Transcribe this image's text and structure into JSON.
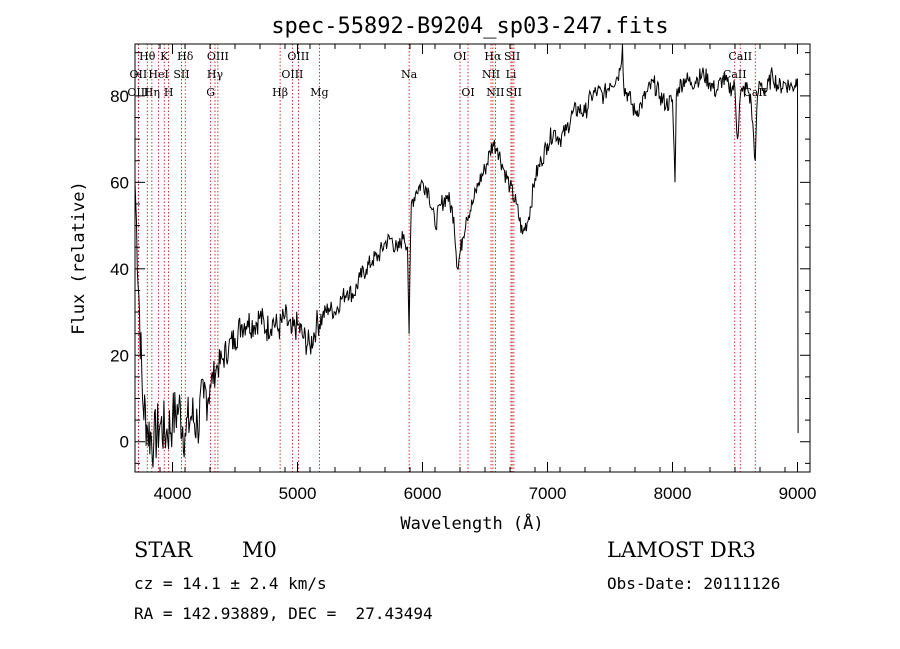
{
  "chart_data": {
    "type": "line",
    "title": "spec-55892-B9204_sp03-247.fits",
    "xlabel": "Wavelength (Å)",
    "ylabel": "Flux (relative)",
    "xlim": [
      3700,
      9100
    ],
    "ylim": [
      -7,
      92
    ],
    "xticks": [
      4000,
      5000,
      6000,
      7000,
      8000,
      9000
    ],
    "yticks": [
      0,
      20,
      40,
      60,
      80
    ],
    "series": [
      {
        "name": "flux",
        "x": [
          3700,
          3760,
          3800,
          3850,
          3900,
          3950,
          4000,
          4050,
          4100,
          4150,
          4200,
          4250,
          4300,
          4350,
          4400,
          4450,
          4500,
          4550,
          4600,
          4650,
          4700,
          4750,
          4800,
          4850,
          4900,
          4950,
          5000,
          5050,
          5100,
          5150,
          5200,
          5250,
          5300,
          5350,
          5400,
          5450,
          5500,
          5550,
          5600,
          5650,
          5700,
          5750,
          5800,
          5850,
          5880,
          5893,
          5910,
          5950,
          6000,
          6050,
          6100,
          6150,
          6200,
          6250,
          6280,
          6320,
          6350,
          6400,
          6450,
          6500,
          6540,
          6563,
          6600,
          6650,
          6700,
          6750,
          6800,
          6850,
          6900,
          6950,
          7000,
          7050,
          7100,
          7150,
          7200,
          7250,
          7300,
          7350,
          7400,
          7450,
          7500,
          7550,
          7580,
          7600,
          7610,
          7650,
          7700,
          7750,
          7800,
          7850,
          7900,
          7950,
          8000,
          8020,
          8030,
          8050,
          8100,
          8150,
          8200,
          8250,
          8300,
          8350,
          8400,
          8450,
          8498,
          8520,
          8542,
          8560,
          8600,
          8630,
          8662,
          8680,
          8700,
          8750,
          8800,
          8850,
          8900,
          8960,
          9000,
          9005
        ],
        "values": [
          60,
          10,
          3,
          0,
          4,
          2,
          5,
          8,
          2,
          6,
          4,
          10,
          13,
          17,
          19,
          22,
          24,
          27,
          28,
          27,
          29,
          26,
          28,
          26,
          29,
          25,
          27,
          24,
          22,
          27,
          29,
          31,
          30,
          33,
          35,
          34,
          38,
          40,
          42,
          43,
          46,
          47,
          44,
          48,
          45,
          25,
          55,
          58,
          60,
          58,
          50,
          55,
          57,
          52,
          40,
          47,
          52,
          55,
          60,
          63,
          67,
          69,
          68,
          63,
          59,
          55,
          48,
          52,
          61,
          65,
          69,
          72,
          70,
          72,
          76,
          77,
          76,
          80,
          81,
          80,
          83,
          84,
          86,
          92,
          82,
          80,
          76,
          78,
          81,
          83,
          80,
          78,
          79,
          60,
          80,
          82,
          84,
          83,
          84,
          85,
          83,
          81,
          84,
          82,
          82,
          70,
          80,
          81,
          82,
          78,
          65,
          80,
          83,
          81,
          85,
          82,
          83,
          82,
          84,
          2
        ]
      }
    ],
    "spectral_lines": [
      {
        "name": "Hθ",
        "wave": 3798,
        "row": 0
      },
      {
        "name": "OII",
        "wave": 3727,
        "row": 1
      },
      {
        "name": "OIII",
        "wave": 3727,
        "row": 2
      },
      {
        "name": "HeI",
        "wave": 3889,
        "row": 1
      },
      {
        "name": "Hη",
        "wave": 3835,
        "row": 2
      },
      {
        "name": "K",
        "wave": 3934,
        "row": 0
      },
      {
        "name": "H",
        "wave": 3969,
        "row": 2
      },
      {
        "name": "SII",
        "wave": 4072,
        "row": 1
      },
      {
        "name": "Hδ",
        "wave": 4102,
        "row": 0
      },
      {
        "name": "OIII",
        "wave": 4363,
        "row": 0
      },
      {
        "name": "Hγ",
        "wave": 4340,
        "row": 1
      },
      {
        "name": "G",
        "wave": 4305,
        "row": 2
      },
      {
        "name": "Hβ",
        "wave": 4861,
        "row": 2
      },
      {
        "name": "OIII",
        "wave": 4959,
        "row": 1
      },
      {
        "name": "OIII",
        "wave": 5007,
        "row": 0
      },
      {
        "name": "Mg",
        "wave": 5175,
        "row": 2
      },
      {
        "name": "Na",
        "wave": 5893,
        "row": 1
      },
      {
        "name": "OI",
        "wave": 6300,
        "row": 0
      },
      {
        "name": "OI",
        "wave": 6364,
        "row": 2
      },
      {
        "name": "Hα",
        "wave": 6563,
        "row": 0
      },
      {
        "name": "NII",
        "wave": 6548,
        "row": 1
      },
      {
        "name": "NII",
        "wave": 6583,
        "row": 2
      },
      {
        "name": "SII",
        "wave": 6717,
        "row": 0
      },
      {
        "name": "Li",
        "wave": 6708,
        "row": 1
      },
      {
        "name": "SII",
        "wave": 6731,
        "row": 2
      },
      {
        "name": "CaII",
        "wave": 8542,
        "row": 0
      },
      {
        "name": "CaII",
        "wave": 8498,
        "row": 1
      },
      {
        "name": "CaII",
        "wave": 8662,
        "row": 2
      }
    ],
    "colors": {
      "line": "#000000",
      "marker": "#c00000"
    }
  },
  "info": {
    "object_type": "STAR",
    "subclass": "M0",
    "survey": "LAMOST DR3",
    "redshift": "cz = 14.1 ± 2.4 km/s",
    "obs_date": "Obs-Date: 20111126",
    "coords": "RA = 142.93889, DEC =  27.43494"
  }
}
